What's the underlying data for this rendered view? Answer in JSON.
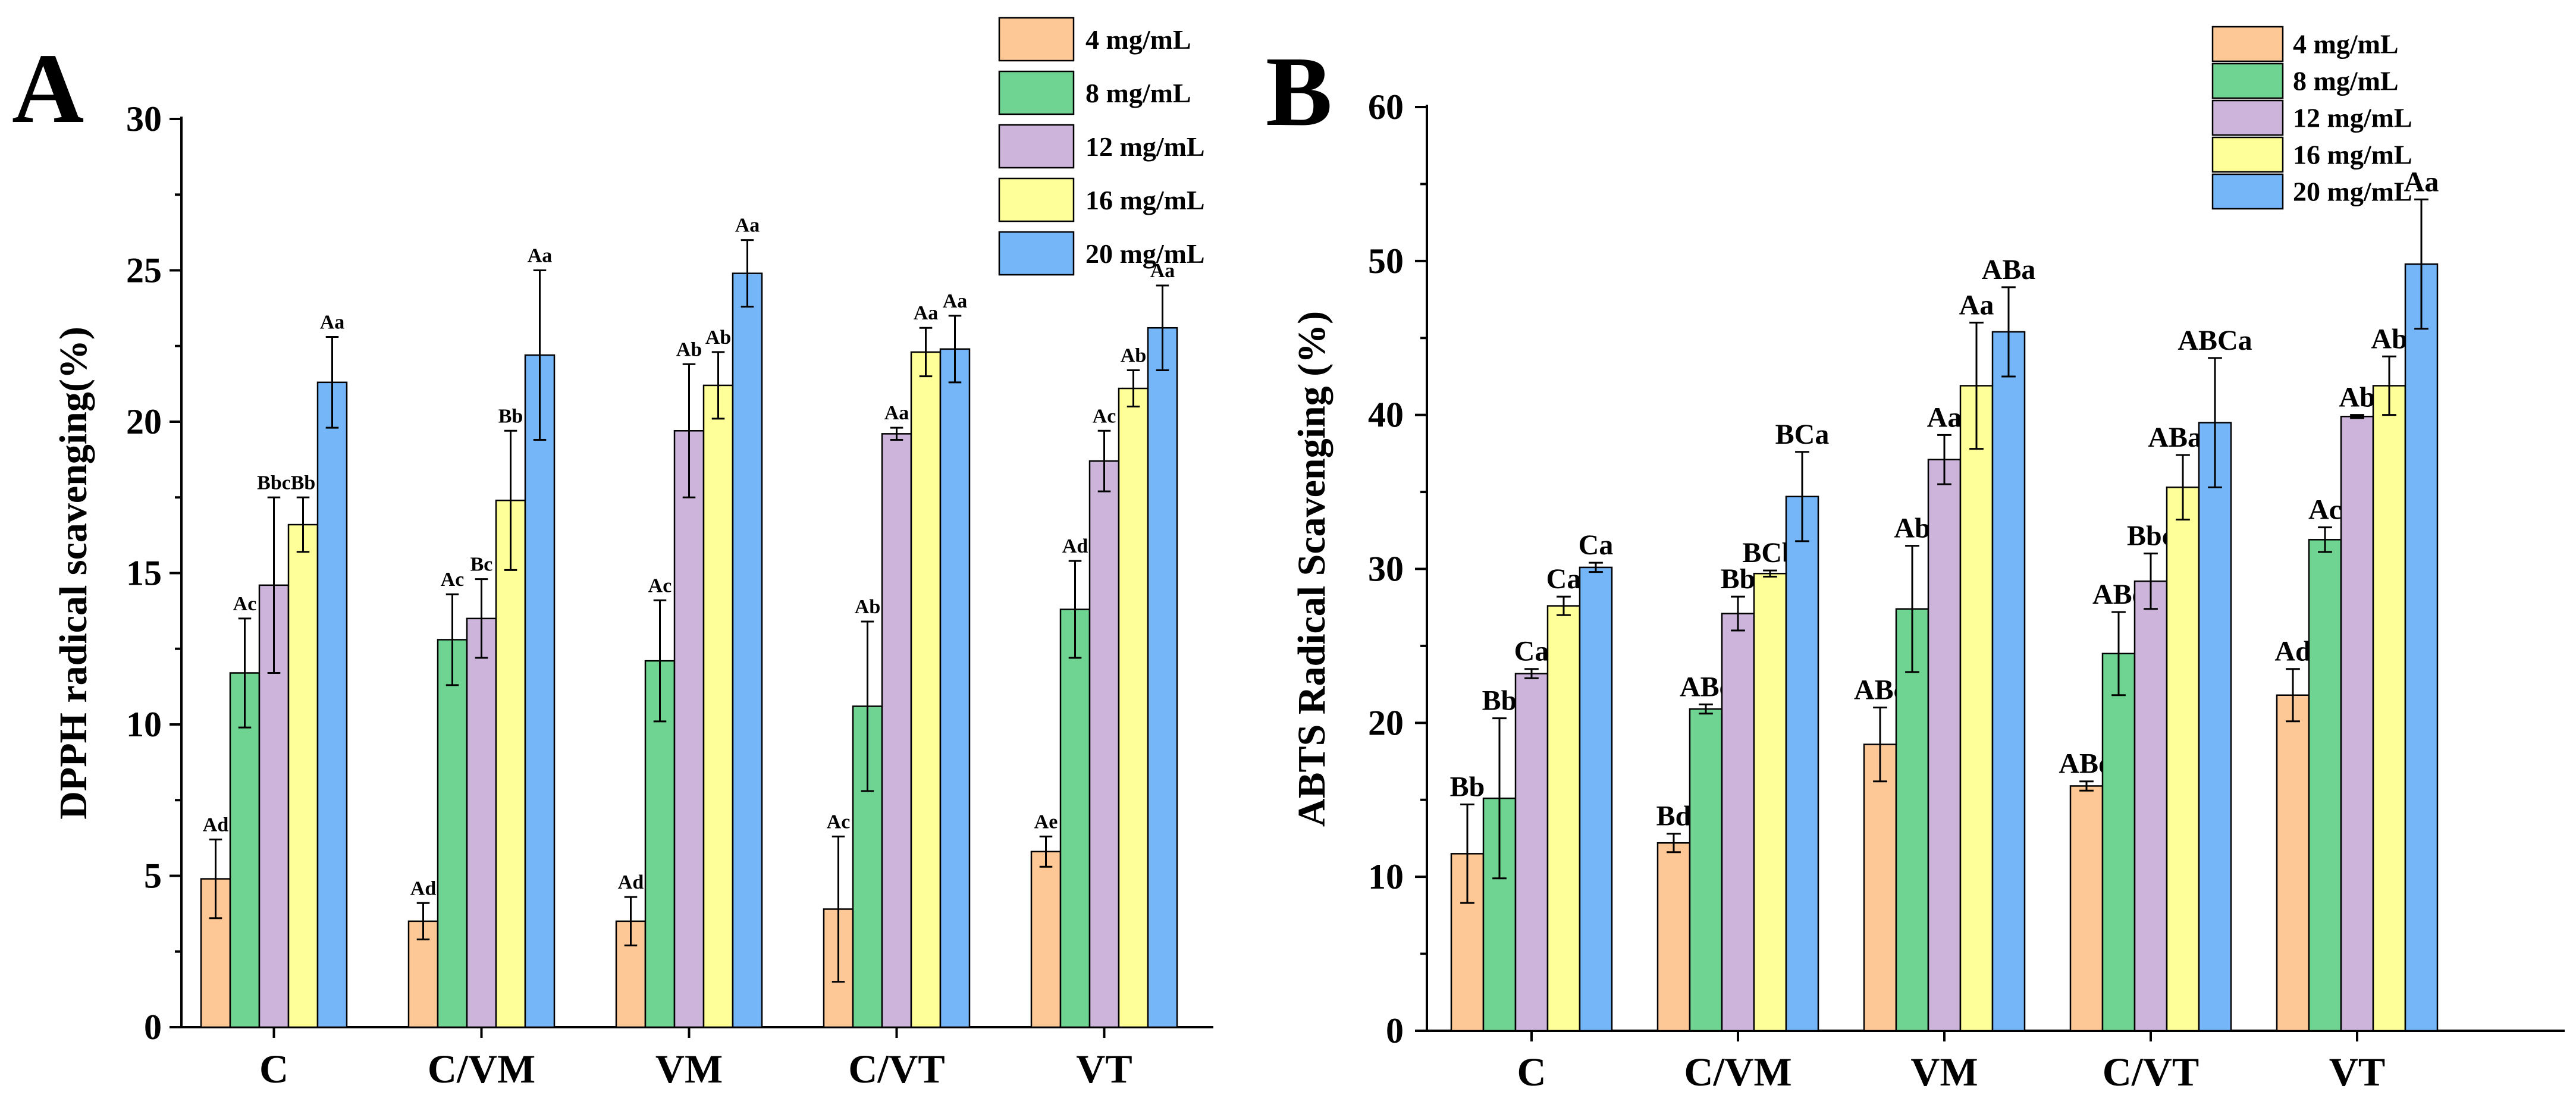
{
  "figure": {
    "colors": {
      "4 mg/mL": "#FDC896",
      "8 mg/mL": "#6FD391",
      "12 mg/mL": "#CDB4DB",
      "16 mg/mL": "#FFFF99",
      "20 mg/mL": "#75B6F8"
    }
  },
  "chart_data": [
    {
      "panel": "A",
      "type": "bar",
      "title": "",
      "xlabel": "",
      "ylabel": "DPPH radical scavenging(%)",
      "ylim": [
        0,
        30
      ],
      "yticks": [
        0,
        5,
        10,
        15,
        20,
        25,
        30
      ],
      "grid": false,
      "legend_position": "top-right",
      "categories": [
        "C",
        "C/VM",
        "VM",
        "C/VT",
        "VT"
      ],
      "series": [
        {
          "name": "4 mg/mL",
          "values": [
            4.9,
            3.5,
            3.5,
            3.9,
            5.8
          ],
          "errors": [
            1.3,
            0.6,
            0.8,
            2.4,
            0.5
          ],
          "labels": [
            "Ad",
            "Ad",
            "Ad",
            "Ac",
            "Ae"
          ]
        },
        {
          "name": "8 mg/mL",
          "values": [
            11.7,
            12.8,
            12.1,
            10.6,
            13.8
          ],
          "errors": [
            1.8,
            1.5,
            2.0,
            2.8,
            1.6
          ],
          "labels": [
            "Ac",
            "Ac",
            "Ac",
            "Ab",
            "Ad"
          ]
        },
        {
          "name": "12 mg/mL",
          "values": [
            14.6,
            13.5,
            19.7,
            19.6,
            18.7
          ],
          "errors": [
            2.9,
            1.3,
            2.2,
            0.2,
            1.0
          ],
          "labels": [
            "Bbc",
            "Bc",
            "Ab",
            "Aa",
            "Ac"
          ]
        },
        {
          "name": "16 mg/mL",
          "values": [
            16.6,
            17.4,
            21.2,
            22.3,
            21.1
          ],
          "errors": [
            0.9,
            2.3,
            1.1,
            0.8,
            0.6
          ],
          "labels": [
            "Bb",
            "Bb",
            "Ab",
            "Aa",
            "Ab"
          ]
        },
        {
          "name": "20 mg/mL",
          "values": [
            21.3,
            22.2,
            24.9,
            22.4,
            23.1
          ],
          "errors": [
            1.5,
            2.8,
            1.1,
            1.1,
            1.4
          ],
          "labels": [
            "Aa",
            "Aa",
            "Aa",
            "Aa",
            "Aa"
          ]
        }
      ]
    },
    {
      "panel": "B",
      "type": "bar",
      "title": "",
      "xlabel": "",
      "ylabel": "ABTS Radical Scavenging (%)",
      "ylim": [
        0,
        60
      ],
      "yticks": [
        0,
        10,
        20,
        30,
        40,
        50,
        60
      ],
      "grid": false,
      "legend_position": "top-right",
      "categories": [
        "C",
        "C/VM",
        "VM",
        "C/VT",
        "VT"
      ],
      "series": [
        {
          "name": "4 mg/mL",
          "values": [
            11.5,
            12.2,
            18.6,
            15.9,
            21.8
          ],
          "errors": [
            3.2,
            0.6,
            2.4,
            0.3,
            1.7
          ],
          "labels": [
            "Bb",
            "Bd",
            "ABc",
            "ABd",
            "Ad"
          ]
        },
        {
          "name": "8 mg/mL",
          "values": [
            15.1,
            20.9,
            27.4,
            24.5,
            31.9
          ],
          "errors": [
            5.2,
            0.3,
            4.1,
            2.7,
            0.8
          ],
          "labels": [
            "Bb",
            "ABc",
            "Ab",
            "ABc",
            "Ac"
          ]
        },
        {
          "name": "12 mg/mL",
          "values": [
            23.2,
            27.1,
            37.1,
            29.2,
            39.9
          ],
          "errors": [
            0.3,
            1.1,
            1.6,
            1.8,
            0.1
          ],
          "labels": [
            "Ca",
            "Bb",
            "Aa",
            "Bbc",
            "Ab"
          ]
        },
        {
          "name": "16 mg/mL",
          "values": [
            27.6,
            29.7,
            41.9,
            35.3,
            41.9
          ],
          "errors": [
            0.6,
            0.2,
            4.1,
            2.1,
            1.9
          ],
          "labels": [
            "Ca",
            "BCb",
            "Aa",
            "ABab",
            "Ab"
          ]
        },
        {
          "name": "20 mg/mL",
          "values": [
            30.1,
            34.7,
            45.4,
            39.5,
            49.8
          ],
          "errors": [
            0.3,
            2.9,
            2.9,
            4.2,
            4.2
          ],
          "labels": [
            "Ca",
            "BCa",
            "ABa",
            "ABCa",
            "Aa"
          ]
        }
      ]
    }
  ]
}
